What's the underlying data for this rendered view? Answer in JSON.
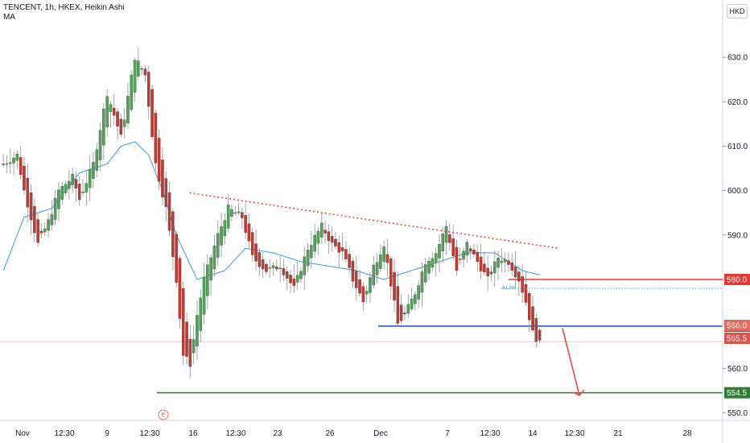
{
  "legend": {
    "symbol_line": "TENCENT, 1h, HKEX, Heikin Ashi",
    "ma_label": "MA"
  },
  "currency_label": "HKD",
  "earnings_marker": "E",
  "colors": {
    "up": "#53a35a",
    "down": "#c23b32",
    "ma": "#4aa3df",
    "trendline": "#e24a4a",
    "resistance": "#e53935",
    "support_mid": "#1d4fa0",
    "support_low": "#2e7d32",
    "arrow": "#e24a4a",
    "price_tag_a": "#e06b62",
    "price_tag_b": "#d9534f"
  },
  "chart_data": {
    "type": "candlestick",
    "ylim": [
      545,
      640
    ],
    "y_ticks": [
      "550.0",
      "560.0",
      "570.0",
      "580.0",
      "590.0",
      "600.0",
      "610.0",
      "620.0",
      "630.0"
    ],
    "x_ticks": [
      "Nov",
      "12:30",
      "9",
      "12:30",
      "16",
      "12:30",
      "23",
      "26",
      "Dec",
      "7",
      "12:30",
      "14",
      "12:30",
      "21",
      "28"
    ],
    "levels": [
      {
        "value": 580.0,
        "label": "580.0",
        "role": "resistance"
      },
      {
        "value": 569.5,
        "label": "569.5",
        "role": "support_mid"
      },
      {
        "value": 554.5,
        "label": "554.5",
        "role": "support_low"
      }
    ],
    "price_tags": [
      {
        "value": 566.0,
        "label": "566.0"
      },
      {
        "value": 565.5,
        "label": "565.5"
      }
    ],
    "dotted_level": {
      "value": 578.0,
      "label": "61.8%"
    },
    "trendline": {
      "from": {
        "bar": 45,
        "value": 599.5
      },
      "to": {
        "bar": 142,
        "value": 587.0
      }
    },
    "forecast_arrow": {
      "from": {
        "bar": 140,
        "value": 569.0
      },
      "to": {
        "bar": 146,
        "value": 555.0
      }
    },
    "series_keypoints": [
      [
        0,
        606
      ],
      [
        4,
        608
      ],
      [
        6,
        600
      ],
      [
        10,
        588
      ],
      [
        13,
        593
      ],
      [
        16,
        600
      ],
      [
        20,
        603
      ],
      [
        22,
        598
      ],
      [
        26,
        606
      ],
      [
        30,
        622
      ],
      [
        34,
        612
      ],
      [
        38,
        630
      ],
      [
        41,
        626
      ],
      [
        44,
        606
      ],
      [
        47,
        596
      ],
      [
        50,
        580
      ],
      [
        52,
        563
      ],
      [
        54,
        561
      ],
      [
        56,
        572
      ],
      [
        58,
        580
      ],
      [
        62,
        590
      ],
      [
        65,
        596
      ],
      [
        69,
        594
      ],
      [
        72,
        585
      ],
      [
        76,
        582
      ],
      [
        80,
        583
      ],
      [
        84,
        578
      ],
      [
        88,
        587
      ],
      [
        92,
        592
      ],
      [
        95,
        588
      ],
      [
        98,
        586
      ],
      [
        101,
        580
      ],
      [
        104,
        575
      ],
      [
        107,
        583
      ],
      [
        110,
        588
      ],
      [
        114,
        570
      ],
      [
        116,
        572
      ],
      [
        119,
        577
      ],
      [
        122,
        584
      ],
      [
        125,
        586
      ],
      [
        128,
        592
      ],
      [
        131,
        582
      ],
      [
        134,
        588
      ],
      [
        137,
        584
      ],
      [
        140,
        580
      ],
      [
        143,
        585
      ],
      [
        146,
        584
      ],
      [
        149,
        580
      ],
      [
        151,
        575
      ],
      [
        153,
        568
      ],
      [
        155,
        565.5
      ]
    ],
    "bar_count": 156,
    "ma_keypoints": [
      [
        0,
        582
      ],
      [
        6,
        594
      ],
      [
        14,
        596
      ],
      [
        22,
        604
      ],
      [
        30,
        606
      ],
      [
        34,
        610
      ],
      [
        38,
        611
      ],
      [
        42,
        608
      ],
      [
        46,
        600
      ],
      [
        50,
        590
      ],
      [
        56,
        580
      ],
      [
        64,
        582
      ],
      [
        70,
        587
      ],
      [
        78,
        586
      ],
      [
        86,
        584
      ],
      [
        94,
        583
      ],
      [
        102,
        582
      ],
      [
        110,
        580
      ],
      [
        118,
        582
      ],
      [
        126,
        584
      ],
      [
        134,
        586
      ],
      [
        142,
        586
      ],
      [
        150,
        582
      ],
      [
        155,
        581
      ]
    ]
  }
}
